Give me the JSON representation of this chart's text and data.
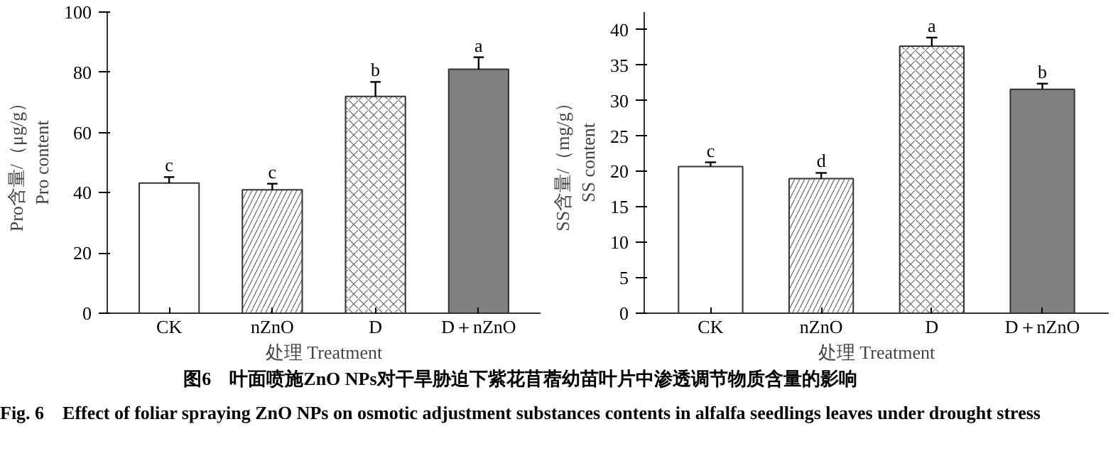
{
  "chart_data": [
    {
      "type": "bar",
      "xlabel": "处理 Treatment",
      "ylabel": "Pro含量/（μg/g）\nPro content",
      "categories": [
        "CK",
        "nZnO",
        "D",
        "D＋nZnO"
      ],
      "values": [
        43.2,
        41.0,
        72.0,
        81.0
      ],
      "errors": [
        2.0,
        2.0,
        4.8,
        4.0
      ],
      "colors": [
        "#ffffff",
        "#ffffff",
        "#ffffff",
        "#808080"
      ],
      "ylim": [
        0,
        100
      ],
      "yticks": [
        0,
        20,
        40,
        60,
        80,
        100
      ],
      "annotations": [
        {
          "text": "c",
          "x": "CK",
          "y": 45.2
        },
        {
          "text": "c",
          "x": "nZnO",
          "y": 43.0
        },
        {
          "text": "b",
          "x": "D",
          "y": 76.8
        },
        {
          "text": "a",
          "x": "D＋nZnO",
          "y": 85.0
        }
      ]
    },
    {
      "type": "bar",
      "xlabel": "处理 Treatment",
      "ylabel": "SS含量/（mg/g）\nSS content",
      "categories": [
        "CK",
        "nZnO",
        "D",
        "D＋nZnO"
      ],
      "values": [
        20.7,
        19.0,
        37.7,
        31.6
      ],
      "errors": [
        0.6,
        0.8,
        1.2,
        0.8
      ],
      "colors": [
        "#ffffff",
        "#ffffff",
        "#ffffff",
        "#808080"
      ],
      "ylim": [
        0,
        42.5
      ],
      "yticks": [
        0,
        5,
        10,
        15,
        20,
        25,
        30,
        35,
        40
      ],
      "annotations": [
        {
          "text": "c",
          "x": "CK",
          "y": 21.3
        },
        {
          "text": "d",
          "x": "nZnO",
          "y": 19.8
        },
        {
          "text": "a",
          "x": "D",
          "y": 38.9
        },
        {
          "text": "b",
          "x": "D＋nZnO",
          "y": 32.4
        }
      ]
    },
    {
      "type": "other",
      "title": "图6　叶面喷施ZnO NPs对干旱胁迫下紫花苜蓿幼苗叶片中渗透调节物质含量的影响",
      "subtitle": "Fig. 6　Effect of foliar spraying ZnO NPs on osmotic adjustment substances contents in alfalfa seedlings leaves under drought stress"
    }
  ]
}
